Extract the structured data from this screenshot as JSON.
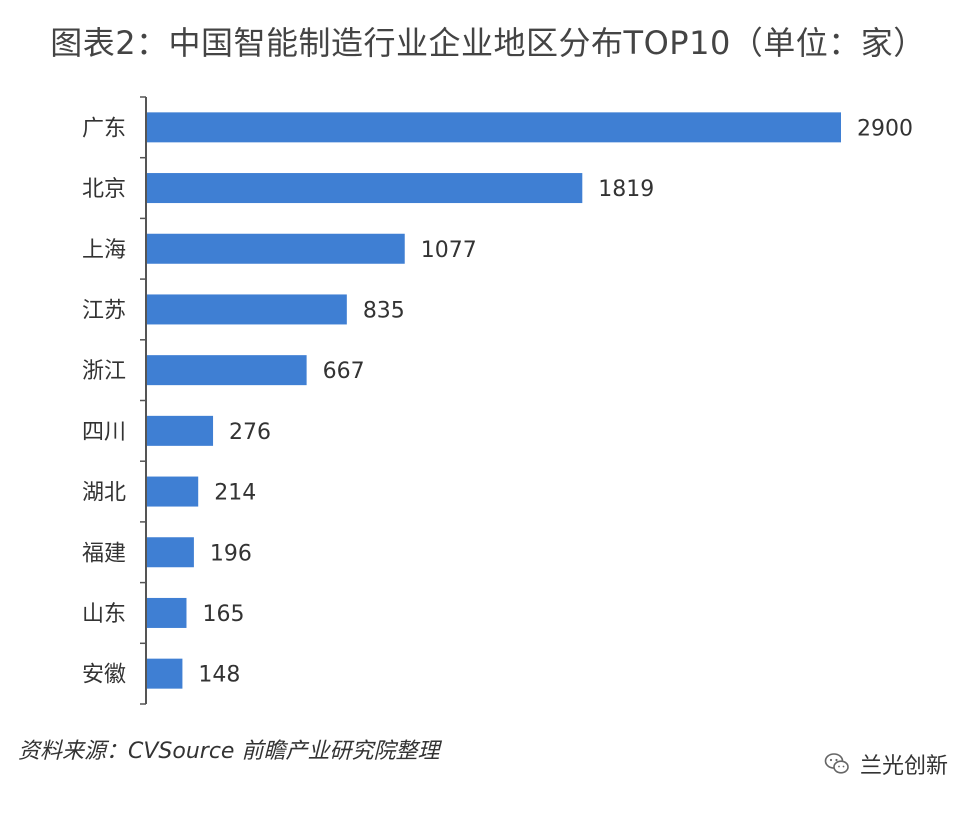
{
  "title": "图表2：中国智能制造行业企业地区分布TOP10（单位：家）",
  "source": "资料来源：CVSource 前瞻产业研究院整理",
  "watermark": {
    "label": "兰光创新",
    "icon": "wechat-icon"
  },
  "colors": {
    "bar": "#3f7fd3",
    "axis": "#555555",
    "text": "#333333"
  },
  "chart_data": {
    "type": "bar",
    "orientation": "horizontal",
    "title": "图表2：中国智能制造行业企业地区分布TOP10（单位：家）",
    "xlabel": "",
    "ylabel": "",
    "xlim": [
      0,
      2900
    ],
    "grid": false,
    "categories": [
      "广东",
      "北京",
      "上海",
      "江苏",
      "浙江",
      "四川",
      "湖北",
      "福建",
      "山东",
      "安徽"
    ],
    "values": [
      2900,
      1819,
      1077,
      835,
      667,
      276,
      214,
      196,
      165,
      148
    ],
    "data_labels": [
      "2900",
      "1819",
      "1077",
      "835",
      "667",
      "276",
      "214",
      "196",
      "165",
      "148"
    ]
  }
}
